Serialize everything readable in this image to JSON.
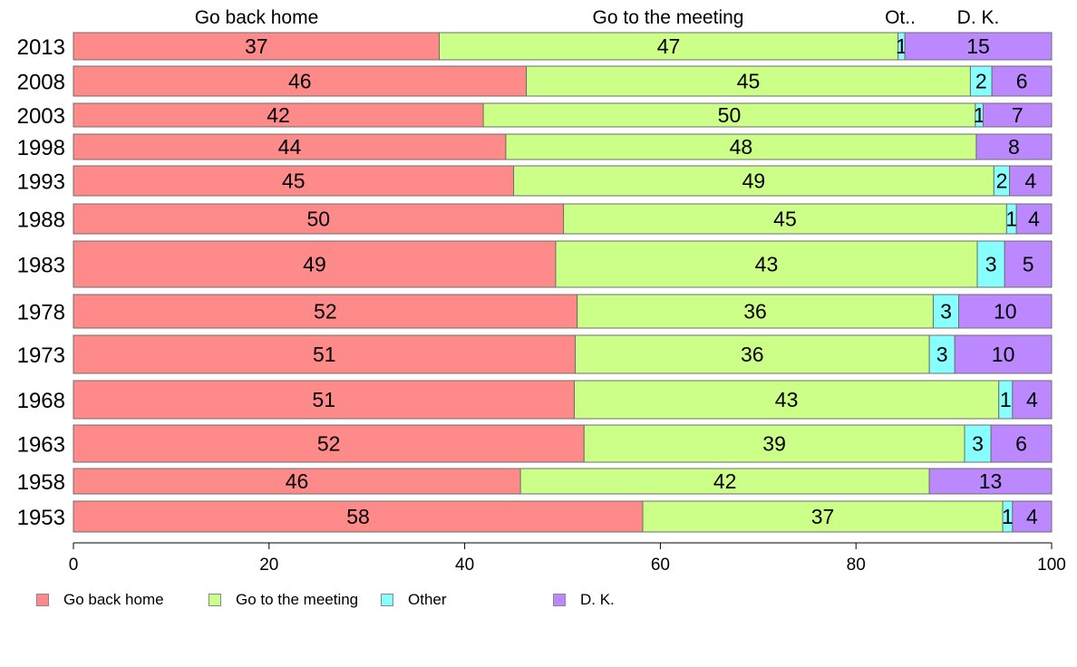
{
  "chart_data": {
    "type": "bar",
    "orientation": "horizontal",
    "stacked": true,
    "title": "",
    "xlabel": "",
    "ylabel": "",
    "xlim": [
      0,
      100
    ],
    "x_ticks": [
      "0",
      "20",
      "40",
      "60",
      "80",
      "100"
    ],
    "variable_bar_width": true,
    "categories": [
      "2013",
      "2008",
      "2003",
      "1998",
      "1993",
      "1988",
      "1983",
      "1978",
      "1973",
      "1968",
      "1963",
      "1958",
      "1953"
    ],
    "series": [
      {
        "name": "Go back home",
        "color": "#ff8a8a",
        "values": [
          37.4,
          46.3,
          41.9,
          44.2,
          45.0,
          50.1,
          49.3,
          51.5,
          51.3,
          51.2,
          52.2,
          45.7,
          58.2
        ],
        "labels": [
          "37",
          "46",
          "42",
          "44",
          "45",
          "50",
          "49",
          "52",
          "51",
          "51",
          "52",
          "46",
          "58"
        ]
      },
      {
        "name": "Go to the meeting",
        "color": "#ccff88",
        "values": [
          46.9,
          45.4,
          50.3,
          48.1,
          49.1,
          45.3,
          43.1,
          36.4,
          36.2,
          43.4,
          38.9,
          41.8,
          36.8
        ],
        "labels": [
          "47",
          "45",
          "50",
          "48",
          "49",
          "45",
          "43",
          "36",
          "36",
          "43",
          "39",
          "42",
          "37"
        ]
      },
      {
        "name": "Other",
        "color": "#88ffff",
        "values": [
          0.7,
          2.2,
          0.8,
          0,
          1.6,
          1.0,
          2.8,
          2.6,
          2.6,
          1.4,
          2.7,
          0,
          1.0
        ],
        "labels": [
          "1",
          "2",
          "1",
          "",
          "2",
          "1",
          "3",
          "3",
          "3",
          "1",
          "3",
          "",
          "1"
        ]
      },
      {
        "name": "D. K.",
        "color": "#bb88ff",
        "values": [
          15.0,
          6.1,
          7.0,
          7.7,
          4.3,
          3.6,
          4.8,
          9.5,
          9.9,
          4.0,
          6.2,
          12.5,
          4.0
        ],
        "labels": [
          "15",
          "6",
          "7",
          "8",
          "4",
          "4",
          "5",
          "10",
          "10",
          "4",
          "6",
          "13",
          "4"
        ]
      }
    ],
    "top_labels": [
      "Go back home",
      "Go to the meeting",
      "Ot..",
      "D. K."
    ],
    "legend_position": "bottom-left",
    "grid": false
  },
  "legend": [
    {
      "label": "Go back home",
      "color": "#ff8a8a"
    },
    {
      "label": "Go to the meeting",
      "color": "#ccff88"
    },
    {
      "label": "Other",
      "color": "#88ffff"
    },
    {
      "label": "D. K.",
      "color": "#bb88ff"
    }
  ]
}
